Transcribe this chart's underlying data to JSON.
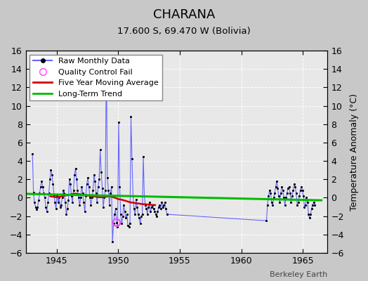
{
  "title": "CHARANA",
  "subtitle": "17.600 S, 69.470 W (Bolivia)",
  "ylabel": "Temperature Anomaly (°C)",
  "credit": "Berkeley Earth",
  "xlim": [
    1942.5,
    1967.0
  ],
  "ylim": [
    -6,
    16
  ],
  "yticks": [
    -6,
    -4,
    -2,
    0,
    2,
    4,
    6,
    8,
    10,
    12,
    14,
    16
  ],
  "xticks": [
    1945,
    1950,
    1955,
    1960,
    1965
  ],
  "bg_color": "#c8c8c8",
  "plot_bg_color": "#e8e8e8",
  "raw_color": "#6666ff",
  "marker_color": "#000000",
  "moving_avg_color": "#cc0000",
  "trend_color": "#00bb00",
  "qc_fail_color": "#ff44ff",
  "raw_data": [
    [
      1943.042,
      4.8
    ],
    [
      1943.125,
      0.6
    ],
    [
      1943.208,
      -0.5
    ],
    [
      1943.292,
      -1.0
    ],
    [
      1943.375,
      -1.3
    ],
    [
      1943.458,
      -1.0
    ],
    [
      1943.542,
      -0.3
    ],
    [
      1943.625,
      0.5
    ],
    [
      1943.708,
      1.2
    ],
    [
      1943.792,
      1.8
    ],
    [
      1943.875,
      1.2
    ],
    [
      1943.958,
      0.5
    ],
    [
      1944.042,
      0.0
    ],
    [
      1944.125,
      -1.0
    ],
    [
      1944.208,
      -1.5
    ],
    [
      1944.292,
      -0.5
    ],
    [
      1944.375,
      0.5
    ],
    [
      1944.458,
      2.0
    ],
    [
      1944.542,
      3.0
    ],
    [
      1944.625,
      2.5
    ],
    [
      1944.708,
      1.5
    ],
    [
      1944.792,
      0.3
    ],
    [
      1944.875,
      -0.5
    ],
    [
      1944.958,
      -1.2
    ],
    [
      1945.042,
      0.3
    ],
    [
      1945.125,
      -0.5
    ],
    [
      1945.208,
      0.0
    ],
    [
      1945.292,
      -1.0
    ],
    [
      1945.375,
      -0.8
    ],
    [
      1945.458,
      0.0
    ],
    [
      1945.542,
      0.8
    ],
    [
      1945.625,
      0.5
    ],
    [
      1945.708,
      -0.5
    ],
    [
      1945.792,
      -1.8
    ],
    [
      1945.875,
      -1.2
    ],
    [
      1945.958,
      -0.3
    ],
    [
      1946.042,
      2.0
    ],
    [
      1946.125,
      1.5
    ],
    [
      1946.208,
      0.2
    ],
    [
      1946.292,
      -0.5
    ],
    [
      1946.375,
      0.8
    ],
    [
      1946.458,
      2.5
    ],
    [
      1946.542,
      3.2
    ],
    [
      1946.625,
      2.0
    ],
    [
      1946.708,
      0.8
    ],
    [
      1946.792,
      0.0
    ],
    [
      1946.875,
      -0.8
    ],
    [
      1946.958,
      0.0
    ],
    [
      1947.042,
      1.2
    ],
    [
      1947.125,
      0.5
    ],
    [
      1947.208,
      -0.5
    ],
    [
      1947.292,
      -1.5
    ],
    [
      1947.375,
      0.2
    ],
    [
      1947.458,
      1.5
    ],
    [
      1947.542,
      2.2
    ],
    [
      1947.625,
      1.2
    ],
    [
      1947.708,
      0.0
    ],
    [
      1947.792,
      -0.8
    ],
    [
      1947.875,
      0.0
    ],
    [
      1947.958,
      0.8
    ],
    [
      1948.042,
      2.5
    ],
    [
      1948.125,
      1.8
    ],
    [
      1948.208,
      0.5
    ],
    [
      1948.292,
      -0.5
    ],
    [
      1948.375,
      1.2
    ],
    [
      1948.458,
      2.0
    ],
    [
      1948.542,
      5.2
    ],
    [
      1948.625,
      2.8
    ],
    [
      1948.708,
      1.0
    ],
    [
      1948.792,
      -1.0
    ],
    [
      1948.875,
      0.0
    ],
    [
      1948.958,
      0.8
    ],
    [
      1949.042,
      14.8
    ],
    [
      1949.125,
      2.2
    ],
    [
      1949.208,
      0.8
    ],
    [
      1949.292,
      -0.8
    ],
    [
      1949.375,
      0.5
    ],
    [
      1949.458,
      1.2
    ],
    [
      1949.542,
      -4.8
    ],
    [
      1949.625,
      -2.8
    ],
    [
      1949.708,
      -1.8
    ],
    [
      1949.792,
      -1.2
    ],
    [
      1949.875,
      -2.7
    ],
    [
      1949.958,
      -3.2
    ],
    [
      1950.042,
      8.2
    ],
    [
      1950.125,
      1.2
    ],
    [
      1950.208,
      -1.8
    ],
    [
      1950.292,
      -2.8
    ],
    [
      1950.375,
      -2.0
    ],
    [
      1950.458,
      -0.8
    ],
    [
      1950.542,
      -1.5
    ],
    [
      1950.625,
      -2.2
    ],
    [
      1950.708,
      -1.8
    ],
    [
      1950.792,
      -3.0
    ],
    [
      1950.875,
      -3.2
    ],
    [
      1950.958,
      -2.8
    ],
    [
      1951.042,
      8.8
    ],
    [
      1951.125,
      4.2
    ],
    [
      1951.208,
      0.2
    ],
    [
      1951.292,
      -1.2
    ],
    [
      1951.375,
      -1.8
    ],
    [
      1951.458,
      -0.2
    ],
    [
      1951.542,
      -1.0
    ],
    [
      1951.625,
      -1.8
    ],
    [
      1951.708,
      -2.2
    ],
    [
      1951.792,
      -2.8
    ],
    [
      1951.875,
      -2.0
    ],
    [
      1951.958,
      -1.8
    ],
    [
      1952.042,
      4.5
    ],
    [
      1952.125,
      0.2
    ],
    [
      1952.208,
      -0.8
    ],
    [
      1952.292,
      -1.2
    ],
    [
      1952.375,
      -1.8
    ],
    [
      1952.458,
      -1.0
    ],
    [
      1952.542,
      -0.5
    ],
    [
      1952.625,
      -1.5
    ],
    [
      1952.708,
      -1.0
    ],
    [
      1952.792,
      -0.8
    ],
    [
      1952.875,
      -1.2
    ],
    [
      1952.958,
      -1.5
    ],
    [
      1953.042,
      -1.8
    ],
    [
      1953.125,
      -2.0
    ],
    [
      1953.208,
      -1.5
    ],
    [
      1953.292,
      -1.0
    ],
    [
      1953.375,
      -0.8
    ],
    [
      1953.458,
      -1.2
    ],
    [
      1953.542,
      -0.5
    ],
    [
      1953.625,
      -1.0
    ],
    [
      1953.708,
      -0.8
    ],
    [
      1953.792,
      -0.5
    ],
    [
      1953.875,
      -1.2
    ],
    [
      1953.958,
      -1.8
    ],
    [
      1962.042,
      -2.5
    ],
    [
      1962.125,
      -0.8
    ],
    [
      1962.208,
      0.2
    ],
    [
      1962.292,
      0.8
    ],
    [
      1962.375,
      0.5
    ],
    [
      1962.458,
      -0.5
    ],
    [
      1962.542,
      -0.8
    ],
    [
      1962.625,
      0.0
    ],
    [
      1962.708,
      0.5
    ],
    [
      1962.792,
      1.2
    ],
    [
      1962.875,
      1.8
    ],
    [
      1962.958,
      1.0
    ],
    [
      1963.042,
      0.2
    ],
    [
      1963.125,
      -0.5
    ],
    [
      1963.208,
      0.5
    ],
    [
      1963.292,
      1.2
    ],
    [
      1963.375,
      0.8
    ],
    [
      1963.458,
      0.0
    ],
    [
      1963.542,
      -0.8
    ],
    [
      1963.625,
      0.0
    ],
    [
      1963.708,
      0.5
    ],
    [
      1963.792,
      1.0
    ],
    [
      1963.875,
      1.2
    ],
    [
      1963.958,
      0.5
    ],
    [
      1964.042,
      -0.5
    ],
    [
      1964.125,
      0.2
    ],
    [
      1964.208,
      0.8
    ],
    [
      1964.292,
      1.5
    ],
    [
      1964.375,
      1.2
    ],
    [
      1964.458,
      0.5
    ],
    [
      1964.542,
      -0.8
    ],
    [
      1964.625,
      -0.5
    ],
    [
      1964.708,
      0.2
    ],
    [
      1964.792,
      0.8
    ],
    [
      1964.875,
      1.2
    ],
    [
      1964.958,
      0.8
    ],
    [
      1965.042,
      0.2
    ],
    [
      1965.125,
      -1.0
    ],
    [
      1965.208,
      -0.8
    ],
    [
      1965.292,
      0.0
    ],
    [
      1965.375,
      -0.5
    ],
    [
      1965.458,
      -1.8
    ],
    [
      1965.542,
      -2.2
    ],
    [
      1965.625,
      -1.8
    ],
    [
      1965.708,
      -1.2
    ],
    [
      1965.792,
      -0.8
    ],
    [
      1965.875,
      -0.5
    ],
    [
      1965.958,
      -0.8
    ]
  ],
  "qc_fail_points": [
    [
      1949.875,
      -2.7
    ]
  ],
  "moving_avg": [
    [
      1944.5,
      0.15
    ],
    [
      1944.75,
      0.1
    ],
    [
      1945.0,
      0.05
    ],
    [
      1945.25,
      0.1
    ],
    [
      1945.5,
      0.2
    ],
    [
      1945.75,
      0.25
    ],
    [
      1946.0,
      0.3
    ],
    [
      1946.25,
      0.4
    ],
    [
      1946.5,
      0.45
    ],
    [
      1946.75,
      0.4
    ],
    [
      1947.0,
      0.35
    ],
    [
      1947.25,
      0.3
    ],
    [
      1947.5,
      0.25
    ],
    [
      1947.75,
      0.2
    ],
    [
      1948.0,
      0.15
    ],
    [
      1948.25,
      0.1
    ],
    [
      1948.5,
      0.05
    ],
    [
      1948.75,
      0.05
    ],
    [
      1949.0,
      0.1
    ],
    [
      1949.25,
      0.15
    ],
    [
      1949.5,
      0.1
    ],
    [
      1949.75,
      0.0
    ],
    [
      1950.0,
      -0.15
    ],
    [
      1950.25,
      -0.2
    ],
    [
      1950.5,
      -0.3
    ],
    [
      1950.75,
      -0.4
    ],
    [
      1951.0,
      -0.5
    ],
    [
      1951.25,
      -0.55
    ],
    [
      1951.5,
      -0.6
    ],
    [
      1951.75,
      -0.65
    ],
    [
      1952.0,
      -0.7
    ],
    [
      1952.25,
      -0.72
    ],
    [
      1952.5,
      -0.75
    ],
    [
      1952.75,
      -0.78
    ],
    [
      1953.0,
      -0.8
    ]
  ],
  "trend_x": [
    1942.5,
    1966.5
  ],
  "trend_y": [
    0.42,
    -0.28
  ]
}
